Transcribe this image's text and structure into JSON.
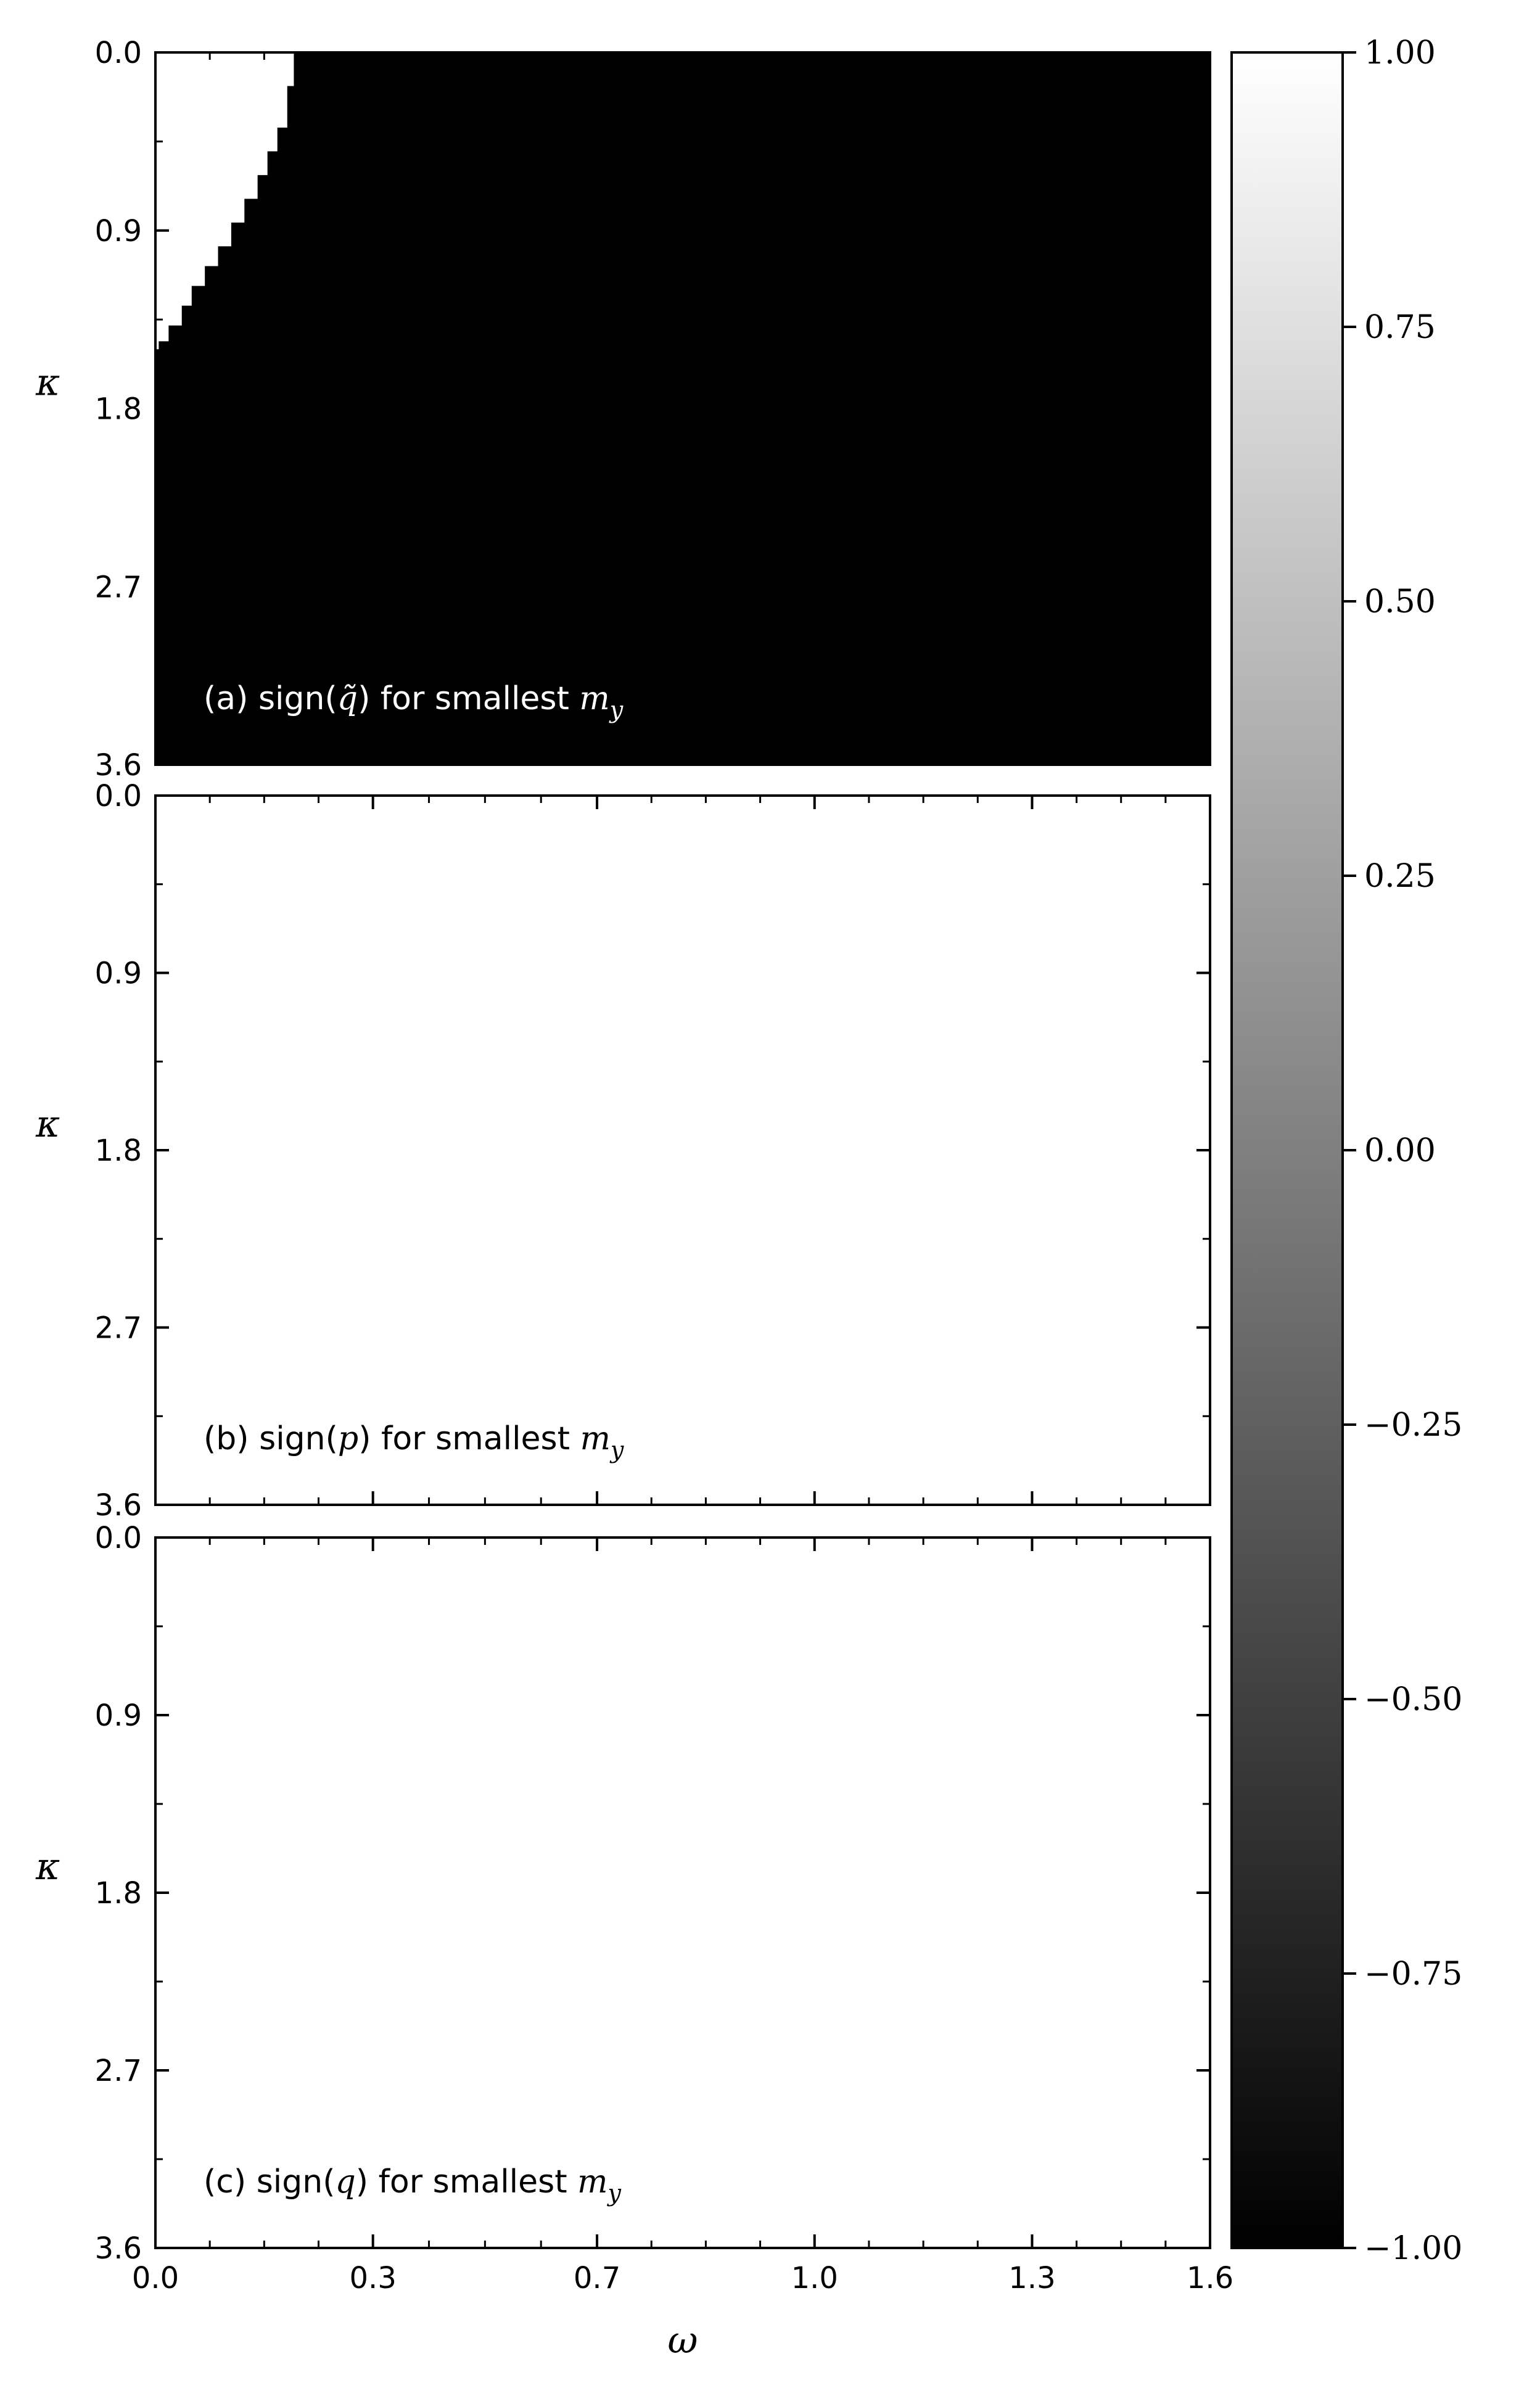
{
  "chart_data": [
    {
      "type": "heatmap",
      "panel": "a",
      "annotation": {
        "prefix": "(a) sign(",
        "var": "q̃",
        "middle": ") for smallest ",
        "m": "m",
        "sub": "y"
      },
      "xlabel": "",
      "ylabel": "κ",
      "xlim": [
        0.0,
        1.6
      ],
      "ylim": [
        3.6,
        0.0
      ],
      "xticks": [
        "0.0",
        "0.3",
        "0.7",
        "1.0",
        "1.3",
        "1.6"
      ],
      "xtick_values": [
        0.0,
        0.33,
        0.67,
        1.0,
        1.33,
        1.6
      ],
      "yticks": [
        "0.0",
        "0.9",
        "1.8",
        "2.7",
        "3.6"
      ],
      "ytick_values": [
        0.0,
        0.9,
        1.8,
        2.7,
        3.6
      ],
      "background_value": -1,
      "region_value": 1,
      "region_boundary": [
        {
          "kappa": 0.0,
          "omega": 0.21
        },
        {
          "kappa": 0.17,
          "omega": 0.2
        },
        {
          "kappa": 0.38,
          "omega": 0.185
        },
        {
          "kappa": 0.5,
          "omega": 0.17
        },
        {
          "kappa": 0.62,
          "omega": 0.155
        },
        {
          "kappa": 0.74,
          "omega": 0.135
        },
        {
          "kappa": 0.86,
          "omega": 0.115
        },
        {
          "kappa": 0.98,
          "omega": 0.095
        },
        {
          "kappa": 1.08,
          "omega": 0.075
        },
        {
          "kappa": 1.18,
          "omega": 0.055
        },
        {
          "kappa": 1.28,
          "omega": 0.04
        },
        {
          "kappa": 1.38,
          "omega": 0.02
        },
        {
          "kappa": 1.46,
          "omega": 0.005
        },
        {
          "kappa": 1.5,
          "omega": 0.0
        }
      ]
    },
    {
      "type": "heatmap",
      "panel": "b",
      "annotation": {
        "prefix": "(b) sign(",
        "var": "p",
        "middle": ") for smallest ",
        "m": "m",
        "sub": "y"
      },
      "xlabel": "",
      "ylabel": "κ",
      "xlim": [
        0.0,
        1.6
      ],
      "ylim": [
        3.6,
        0.0
      ],
      "xticks": [
        "0.0",
        "0.3",
        "0.7",
        "1.0",
        "1.3",
        "1.6"
      ],
      "xtick_values": [
        0.0,
        0.33,
        0.67,
        1.0,
        1.33,
        1.6
      ],
      "yticks": [
        "0.0",
        "0.9",
        "1.8",
        "2.7",
        "3.6"
      ],
      "ytick_values": [
        0.0,
        0.9,
        1.8,
        2.7,
        3.6
      ],
      "background_value": 1
    },
    {
      "type": "heatmap",
      "panel": "c",
      "annotation": {
        "prefix": "(c) sign(",
        "var": "q",
        "middle": ") for smallest ",
        "m": "m",
        "sub": "y"
      },
      "xlabel": "ω",
      "ylabel": "κ",
      "xlim": [
        0.0,
        1.6
      ],
      "ylim": [
        3.6,
        0.0
      ],
      "xticks": [
        "0.0",
        "0.3",
        "0.7",
        "1.0",
        "1.3",
        "1.6"
      ],
      "xtick_values": [
        0.0,
        0.33,
        0.67,
        1.0,
        1.33,
        1.6
      ],
      "yticks": [
        "0.0",
        "0.9",
        "1.8",
        "2.7",
        "3.6"
      ],
      "ytick_values": [
        0.0,
        0.9,
        1.8,
        2.7,
        3.6
      ],
      "background_value": 1
    }
  ],
  "colorbar": {
    "range": [
      -1.0,
      1.0
    ],
    "colormap": "gray",
    "ticks": [
      "1.00",
      "0.75",
      "0.50",
      "0.25",
      "0.00",
      "−0.25",
      "−0.50",
      "−0.75",
      "−1.00"
    ],
    "tick_values": [
      1.0,
      0.75,
      0.5,
      0.25,
      0.0,
      -0.25,
      -0.5,
      -0.75,
      -1.0
    ]
  }
}
